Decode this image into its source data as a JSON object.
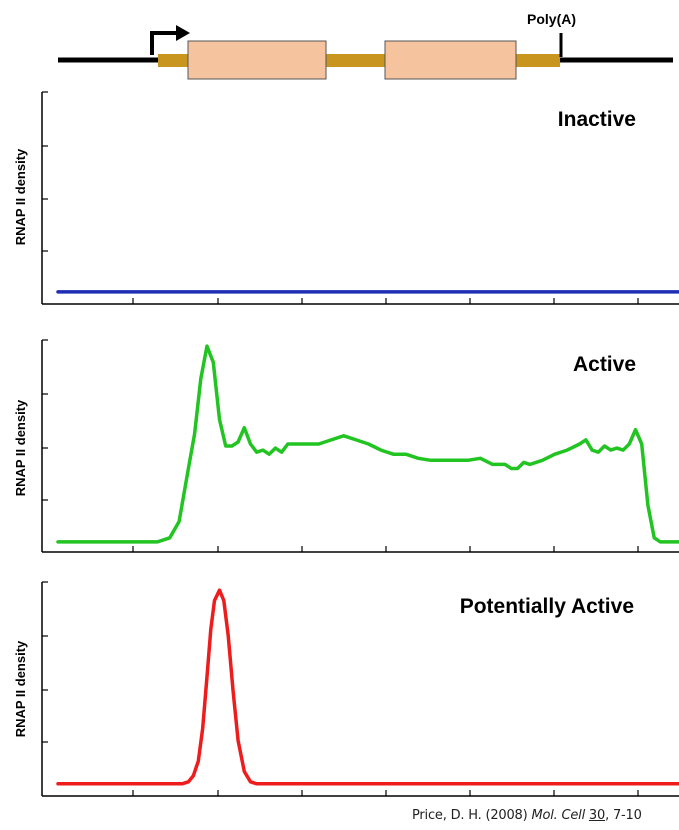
{
  "gene_diagram": {
    "polyA_label": "Poly(A)",
    "colors": {
      "line": "#000000",
      "utr": "#c8961e",
      "exon": "#f6c39f",
      "exon_border": "#444444"
    }
  },
  "citation": {
    "author": "Price, D. H. (2008)",
    "journal": "Mol. Cell",
    "volume": "30",
    "pages": ", 7-10"
  },
  "chart_data": [
    {
      "type": "line",
      "title": "Inactive",
      "ylabel": "RNAP II density",
      "xlim": [
        0,
        100
      ],
      "ylim": [
        0,
        100
      ],
      "grid": false,
      "series": [
        {
          "color": "#1f2db3",
          "x": [
            0,
            100
          ],
          "y": [
            3,
            3
          ]
        }
      ]
    },
    {
      "type": "line",
      "title": "Active",
      "ylabel": "RNAP II density",
      "xlim": [
        0,
        100
      ],
      "ylim": [
        0,
        100
      ],
      "grid": false,
      "series": [
        {
          "color": "#22c422",
          "x": [
            0,
            16,
            18,
            19.5,
            21,
            22,
            23,
            24,
            25,
            26,
            27,
            28,
            29,
            30,
            31,
            32,
            33,
            34,
            35,
            36,
            37,
            38,
            40,
            42,
            44,
            46,
            48,
            50,
            52,
            54,
            56,
            58,
            60,
            62,
            64,
            66,
            68,
            70,
            72,
            73,
            74,
            75,
            76,
            78,
            80,
            82,
            84,
            85,
            86,
            87,
            88,
            89,
            90,
            91,
            92,
            93,
            94,
            95,
            96,
            97,
            100
          ],
          "y": [
            2,
            2,
            4,
            12,
            38,
            55,
            82,
            98,
            90,
            62,
            49,
            49,
            51,
            58,
            50,
            46,
            47,
            45,
            48,
            46,
            50,
            50,
            50,
            50,
            52,
            54,
            52,
            50,
            47,
            45,
            45,
            43,
            42,
            42,
            42,
            42,
            43,
            40,
            40,
            38,
            38,
            41,
            40,
            42,
            45,
            47,
            50,
            52,
            47,
            46,
            49,
            47,
            48,
            47,
            50,
            57,
            50,
            20,
            4,
            2,
            2
          ]
        }
      ]
    },
    {
      "type": "line",
      "title": "Potentially Active",
      "ylabel": "RNAP II density",
      "xlim": [
        0,
        100
      ],
      "ylim": [
        0,
        100
      ],
      "grid": false,
      "series": [
        {
          "color": "#ee1c1c",
          "x": [
            0,
            20,
            21,
            21.8,
            22.6,
            23.3,
            24,
            24.6,
            25.2,
            26,
            26.7,
            27.4,
            28.2,
            29,
            30,
            31,
            32,
            100
          ],
          "y": [
            3,
            3,
            4,
            7,
            14,
            30,
            55,
            78,
            92,
            97,
            92,
            75,
            48,
            24,
            9,
            4,
            3,
            3
          ]
        }
      ]
    }
  ]
}
